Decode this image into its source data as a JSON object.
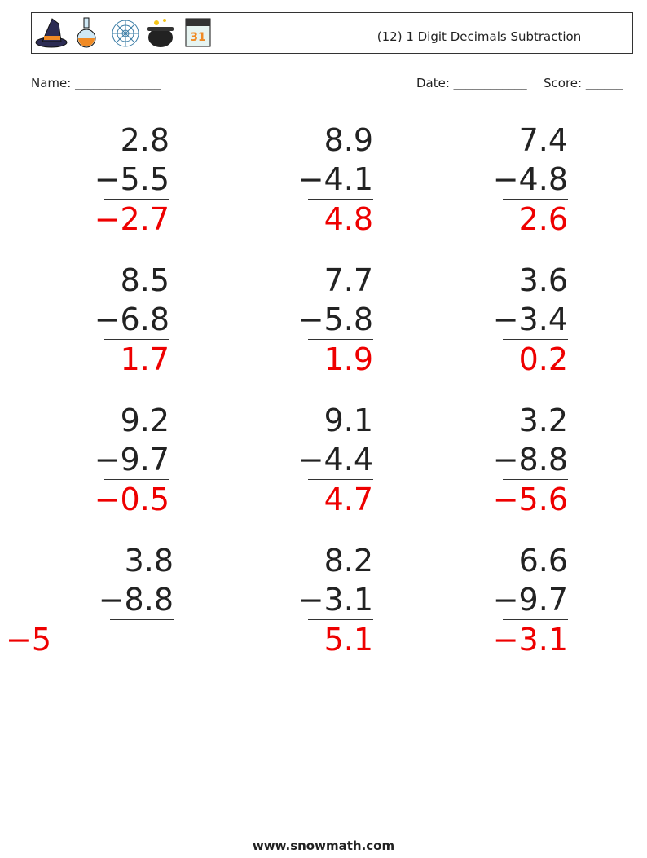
{
  "header": {
    "title": "(12) 1 Digit Decimals Subtraction"
  },
  "fields": {
    "name": "Name: ______________",
    "date": "Date: ____________",
    "score": "Score: ______"
  },
  "problems": [
    {
      "top": "2.8",
      "bottom": "−5.5",
      "answer": "−2.7"
    },
    {
      "top": "8.9",
      "bottom": "−4.1",
      "answer": "4.8"
    },
    {
      "top": "7.4",
      "bottom": "−4.8",
      "answer": "2.6"
    },
    {
      "top": "8.5",
      "bottom": "−6.8",
      "answer": "1.7"
    },
    {
      "top": "7.7",
      "bottom": "−5.8",
      "answer": "1.9"
    },
    {
      "top": "3.6",
      "bottom": "−3.4",
      "answer": "0.2"
    },
    {
      "top": "9.2",
      "bottom": "−9.7",
      "answer": "−0.5"
    },
    {
      "top": "9.1",
      "bottom": "−4.4",
      "answer": "4.7"
    },
    {
      "top": "3.2",
      "bottom": "−8.8",
      "answer": "−5.6"
    },
    {
      "top": "3.8",
      "bottom": "−8.8",
      "answer": "−5"
    },
    {
      "top": "8.2",
      "bottom": "−3.1",
      "answer": "5.1"
    },
    {
      "top": "6.6",
      "bottom": "−9.7",
      "answer": "−3.1"
    }
  ],
  "footer": "www.snowmath.com"
}
